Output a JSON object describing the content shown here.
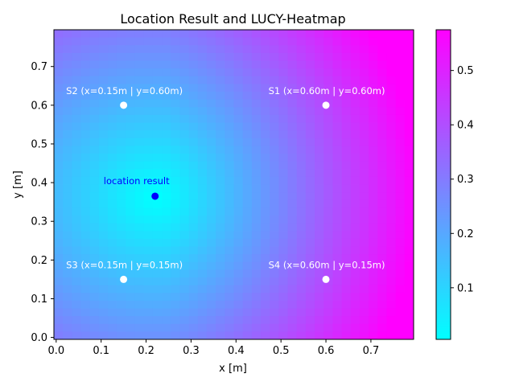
{
  "chart_data": {
    "type": "heatmap",
    "title": "Location Result and LUCY-Heatmap",
    "xlabel": "x [m]",
    "ylabel": "y [m]",
    "xlim": [
      -0.005,
      0.795
    ],
    "ylim": [
      -0.005,
      0.795
    ],
    "x_ticks": [
      0.0,
      0.1,
      0.2,
      0.3,
      0.4,
      0.5,
      0.6,
      0.7
    ],
    "x_tick_labels": [
      "0.0",
      "0.1",
      "0.2",
      "0.3",
      "0.4",
      "0.5",
      "0.6",
      "0.7"
    ],
    "y_ticks": [
      0.0,
      0.1,
      0.2,
      0.3,
      0.4,
      0.5,
      0.6,
      0.7
    ],
    "y_tick_labels": [
      "0.0",
      "0.1",
      "0.2",
      "0.3",
      "0.4",
      "0.5",
      "0.6",
      "0.7"
    ],
    "grid": false,
    "colormap": "cool",
    "colormap_colors": [
      "#00ffff",
      "#ff00ff"
    ],
    "colorbar": {
      "range": [
        0.005,
        0.575
      ],
      "ticks": [
        0.1,
        0.2,
        0.3,
        0.4,
        0.5
      ],
      "tick_labels": [
        "0.1",
        "0.2",
        "0.3",
        "0.4",
        "0.5"
      ]
    },
    "sensors": [
      {
        "label": "S1 (x=0.60m | y=0.60m)",
        "x": 0.6,
        "y": 0.6
      },
      {
        "label": "S2 (x=0.15m | y=0.60m)",
        "x": 0.15,
        "y": 0.6
      },
      {
        "label": "S3 (x=0.15m | y=0.15m)",
        "x": 0.15,
        "y": 0.15
      },
      {
        "label": "S4 (x=0.60m | y=0.15m)",
        "x": 0.6,
        "y": 0.15
      }
    ],
    "sensor_color": "#ffffff",
    "location_result": {
      "label": "location result",
      "x": 0.22,
      "y": 0.365,
      "color": "#0000ff"
    }
  }
}
